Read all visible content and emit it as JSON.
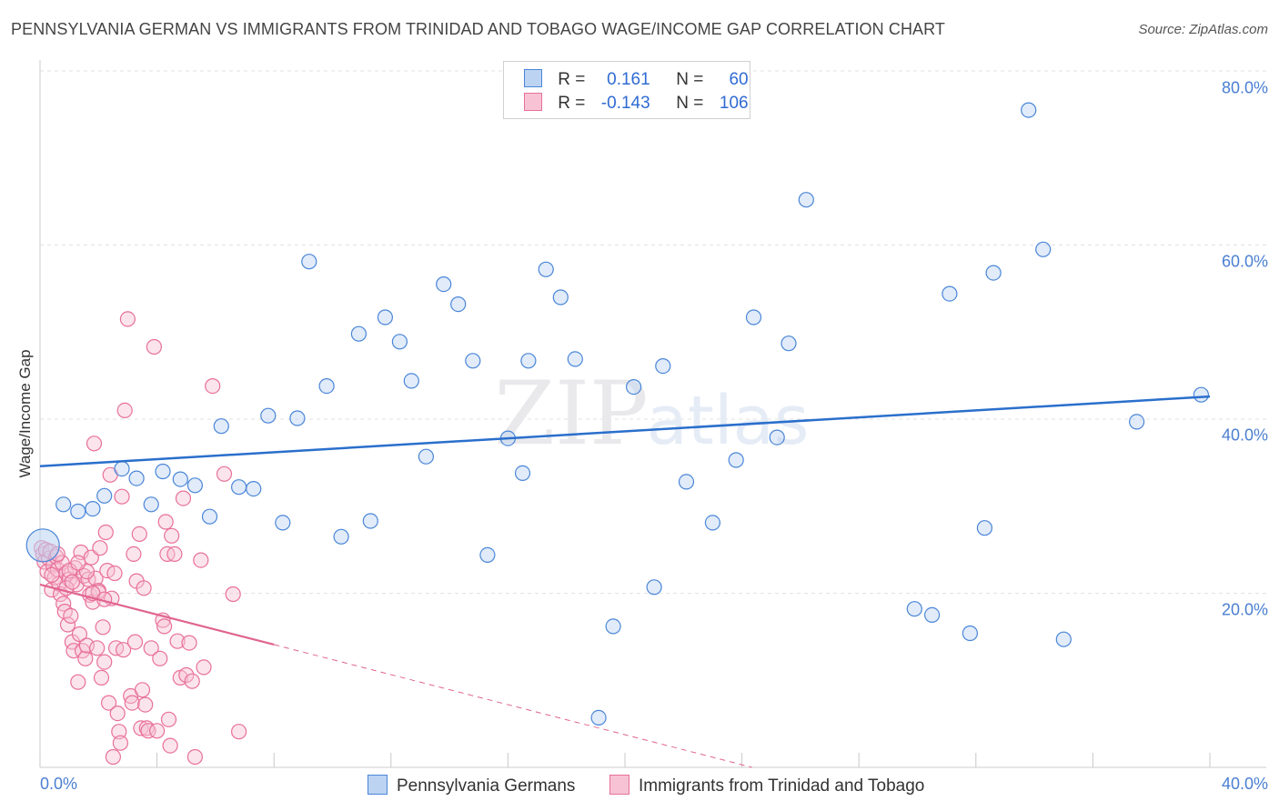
{
  "title": "PENNSYLVANIA GERMAN VS IMMIGRANTS FROM TRINIDAD AND TOBAGO WAGE/INCOME GAP CORRELATION CHART",
  "source": "Source: ZipAtlas.com",
  "watermark": {
    "zip": "ZIP",
    "atlas": "atlas"
  },
  "legend": {
    "series1": {
      "r_label": "R =",
      "r_value": "0.161",
      "n_label": "N =",
      "n_value": "60"
    },
    "series2": {
      "r_label": "R =",
      "r_value": "-0.143",
      "n_label": "N =",
      "n_value": "106"
    }
  },
  "colors": {
    "blue": "#4a86d8",
    "blue_fill": "#bcd3f2",
    "blue_line": "#2a6fcc",
    "pink": "#e8709a",
    "pink_fill": "#f7c3d4",
    "pink_line": "#e0648f",
    "grid": "#e2e2e2",
    "tick_text": "#4a7fd1"
  },
  "chart_data": {
    "type": "scatter",
    "title": "PENNSYLVANIA GERMAN VS IMMIGRANTS FROM TRINIDAD AND TOBAGO WAGE/INCOME GAP CORRELATION CHART",
    "xlabel": "",
    "ylabel": "Wage/Income Gap",
    "xlim": [
      0,
      40
    ],
    "ylim": [
      0,
      80
    ],
    "x_ticks": [
      "0.0%",
      "40.0%"
    ],
    "y_ticks": [
      "20.0%",
      "40.0%",
      "60.0%",
      "80.0%"
    ],
    "y_tick_values": [
      20,
      40,
      60,
      80
    ],
    "legend_placement": "top-center",
    "series": [
      {
        "name": "Pennsylvania Germans",
        "color": "#4a86d8",
        "trend": {
          "x": [
            0,
            40
          ],
          "y": [
            34.6,
            42.6
          ],
          "dashed_from": null
        },
        "points": [
          [
            0.1,
            25.5
          ],
          [
            0.8,
            30.2
          ],
          [
            1.3,
            29.4
          ],
          [
            1.8,
            29.7
          ],
          [
            2.2,
            31.2
          ],
          [
            2.8,
            34.3
          ],
          [
            3.3,
            33.2
          ],
          [
            3.8,
            30.2
          ],
          [
            4.2,
            34.0
          ],
          [
            4.8,
            33.1
          ],
          [
            5.3,
            32.4
          ],
          [
            5.8,
            28.8
          ],
          [
            6.2,
            39.2
          ],
          [
            6.8,
            32.2
          ],
          [
            7.3,
            32.0
          ],
          [
            7.8,
            40.4
          ],
          [
            8.3,
            28.1
          ],
          [
            8.8,
            40.1
          ],
          [
            9.2,
            58.1
          ],
          [
            9.8,
            43.8
          ],
          [
            10.3,
            26.5
          ],
          [
            10.9,
            49.8
          ],
          [
            11.3,
            28.3
          ],
          [
            11.8,
            51.7
          ],
          [
            12.3,
            48.9
          ],
          [
            12.7,
            44.4
          ],
          [
            13.2,
            35.7
          ],
          [
            13.8,
            55.5
          ],
          [
            14.3,
            53.2
          ],
          [
            14.8,
            46.7
          ],
          [
            15.3,
            24.4
          ],
          [
            16.0,
            37.8
          ],
          [
            16.5,
            33.8
          ],
          [
            16.7,
            46.7
          ],
          [
            17.3,
            57.2
          ],
          [
            17.8,
            54.0
          ],
          [
            18.3,
            46.9
          ],
          [
            19.1,
            5.7
          ],
          [
            19.6,
            16.2
          ],
          [
            20.3,
            43.7
          ],
          [
            21.0,
            20.7
          ],
          [
            21.3,
            46.1
          ],
          [
            22.1,
            32.8
          ],
          [
            23.0,
            28.1
          ],
          [
            23.8,
            35.3
          ],
          [
            24.4,
            51.7
          ],
          [
            25.2,
            37.9
          ],
          [
            25.6,
            48.7
          ],
          [
            26.2,
            65.2
          ],
          [
            29.9,
            18.2
          ],
          [
            30.5,
            17.5
          ],
          [
            31.1,
            54.4
          ],
          [
            31.8,
            15.4
          ],
          [
            32.3,
            27.5
          ],
          [
            32.6,
            56.8
          ],
          [
            33.8,
            75.5
          ],
          [
            34.3,
            59.5
          ],
          [
            35.0,
            14.7
          ],
          [
            37.5,
            39.7
          ],
          [
            39.7,
            42.8
          ]
        ]
      },
      {
        "name": "Immigrants from Trinidad and Tobago",
        "color": "#e8709a",
        "trend": {
          "x": [
            0,
            8,
            40
          ],
          "y": [
            21.0,
            14.1,
            -13.5
          ],
          "dashed_from": 8
        },
        "points": [
          [
            0.05,
            25.2
          ],
          [
            0.1,
            24.5
          ],
          [
            0.15,
            23.6
          ],
          [
            0.2,
            25.0
          ],
          [
            0.25,
            22.5
          ],
          [
            0.3,
            24.0
          ],
          [
            0.35,
            24.8
          ],
          [
            0.4,
            20.4
          ],
          [
            0.45,
            23.2
          ],
          [
            0.5,
            21.8
          ],
          [
            0.55,
            24.2
          ],
          [
            0.6,
            22.7
          ],
          [
            0.65,
            21.1
          ],
          [
            0.7,
            19.9
          ],
          [
            0.75,
            23.5
          ],
          [
            0.8,
            18.8
          ],
          [
            0.85,
            17.9
          ],
          [
            0.9,
            22.3
          ],
          [
            0.95,
            16.4
          ],
          [
            1.0,
            21.6
          ],
          [
            1.05,
            17.4
          ],
          [
            1.1,
            14.4
          ],
          [
            1.15,
            13.4
          ],
          [
            1.2,
            22.9
          ],
          [
            1.25,
            21.0
          ],
          [
            1.3,
            9.8
          ],
          [
            1.35,
            15.3
          ],
          [
            1.4,
            24.7
          ],
          [
            1.45,
            13.4
          ],
          [
            1.5,
            22.0
          ],
          [
            1.55,
            12.5
          ],
          [
            1.6,
            14.0
          ],
          [
            1.65,
            21.6
          ],
          [
            1.7,
            19.8
          ],
          [
            1.75,
            24.1
          ],
          [
            1.8,
            19.0
          ],
          [
            1.85,
            37.2
          ],
          [
            1.9,
            21.7
          ],
          [
            1.95,
            13.7
          ],
          [
            2.0,
            20.3
          ],
          [
            2.05,
            25.2
          ],
          [
            2.1,
            10.3
          ],
          [
            2.15,
            16.1
          ],
          [
            2.2,
            12.1
          ],
          [
            2.25,
            27.0
          ],
          [
            2.3,
            22.6
          ],
          [
            2.35,
            7.4
          ],
          [
            2.4,
            33.6
          ],
          [
            2.45,
            19.4
          ],
          [
            2.5,
            1.2
          ],
          [
            2.55,
            22.3
          ],
          [
            2.6,
            13.7
          ],
          [
            2.65,
            6.2
          ],
          [
            2.7,
            4.1
          ],
          [
            2.75,
            2.8
          ],
          [
            2.8,
            31.1
          ],
          [
            2.85,
            13.5
          ],
          [
            2.9,
            41.0
          ],
          [
            3.0,
            51.5
          ],
          [
            3.1,
            8.2
          ],
          [
            3.15,
            7.4
          ],
          [
            3.2,
            24.5
          ],
          [
            3.25,
            14.4
          ],
          [
            3.3,
            21.4
          ],
          [
            3.4,
            26.8
          ],
          [
            3.45,
            4.5
          ],
          [
            3.5,
            8.9
          ],
          [
            3.55,
            20.6
          ],
          [
            3.6,
            7.2
          ],
          [
            3.65,
            4.5
          ],
          [
            3.7,
            4.2
          ],
          [
            3.8,
            13.7
          ],
          [
            3.9,
            48.3
          ],
          [
            4.0,
            4.2
          ],
          [
            4.1,
            12.5
          ],
          [
            4.2,
            16.9
          ],
          [
            4.25,
            16.2
          ],
          [
            4.3,
            28.2
          ],
          [
            4.35,
            24.5
          ],
          [
            4.4,
            5.5
          ],
          [
            4.45,
            2.5
          ],
          [
            4.5,
            26.6
          ],
          [
            4.6,
            24.5
          ],
          [
            4.7,
            14.5
          ],
          [
            4.8,
            10.3
          ],
          [
            4.9,
            30.9
          ],
          [
            5.0,
            10.6
          ],
          [
            5.1,
            14.3
          ],
          [
            5.2,
            9.9
          ],
          [
            5.3,
            1.2
          ],
          [
            5.5,
            23.8
          ],
          [
            5.6,
            11.5
          ],
          [
            5.9,
            43.8
          ],
          [
            6.3,
            33.7
          ],
          [
            6.6,
            19.9
          ],
          [
            6.8,
            4.1
          ],
          [
            1.0,
            22.6
          ],
          [
            1.6,
            22.5
          ],
          [
            2.0,
            20.1
          ],
          [
            1.3,
            23.5
          ],
          [
            0.6,
            24.5
          ],
          [
            0.9,
            20.6
          ],
          [
            1.8,
            20.0
          ],
          [
            1.1,
            21.3
          ],
          [
            0.4,
            22.1
          ],
          [
            2.2,
            19.3
          ]
        ]
      }
    ]
  },
  "bottom_legend": [
    {
      "label": "Pennsylvania Germans",
      "series": "blue"
    },
    {
      "label": "Immigrants from Trinidad and Tobago",
      "series": "pink"
    }
  ]
}
